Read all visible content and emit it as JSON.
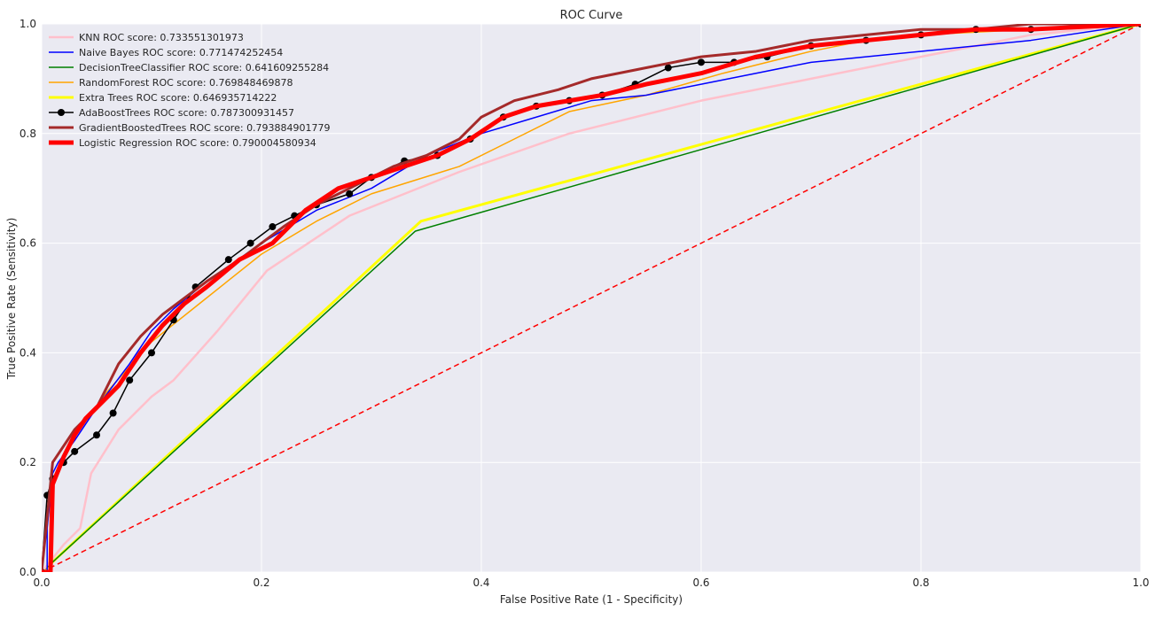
{
  "chart_data": {
    "type": "line",
    "title": "ROC Curve",
    "xlabel": "False Positive Rate (1 - Specificity)",
    "ylabel": "True Positive Rate (Sensitivity)",
    "xlim": [
      0.0,
      1.0
    ],
    "ylim": [
      0.0,
      1.0
    ],
    "xticks": [
      0.0,
      0.2,
      0.4,
      0.6,
      0.8,
      1.0
    ],
    "yticks": [
      0.0,
      0.2,
      0.4,
      0.6,
      0.8,
      1.0
    ],
    "xtick_labels": [
      "0.0",
      "0.2",
      "0.4",
      "0.6",
      "0.8",
      "1.0"
    ],
    "ytick_labels": [
      "0.0",
      "0.2",
      "0.4",
      "0.6",
      "0.8",
      "1.0"
    ],
    "grid": true,
    "legend_position": "top-left",
    "series": [
      {
        "name": "KNN ROC score: 0.733551301973",
        "color": "#ffc0cb",
        "linewidth": 2.5,
        "marker": "none",
        "dash": "solid",
        "x": [
          0.0,
          0.02,
          0.035,
          0.045,
          0.07,
          0.1,
          0.12,
          0.16,
          0.205,
          0.28,
          0.38,
          0.48,
          0.6,
          0.7,
          0.8,
          0.9,
          1.0
        ],
        "y": [
          0.0,
          0.05,
          0.08,
          0.18,
          0.26,
          0.32,
          0.35,
          0.44,
          0.55,
          0.65,
          0.73,
          0.8,
          0.86,
          0.9,
          0.94,
          0.98,
          1.0
        ]
      },
      {
        "name": "Naive Bayes ROC score: 0.771474252454",
        "color": "#0000ff",
        "linewidth": 1.5,
        "marker": "none",
        "dash": "solid",
        "x": [
          0.0,
          0.005,
          0.005,
          0.01,
          0.015,
          0.03,
          0.05,
          0.08,
          0.1,
          0.12,
          0.15,
          0.2,
          0.25,
          0.3,
          0.35,
          0.4,
          0.45,
          0.5,
          0.55,
          0.6,
          0.65,
          0.7,
          0.75,
          0.8,
          0.9,
          1.0
        ],
        "y": [
          0.0,
          0.0,
          0.08,
          0.18,
          0.2,
          0.24,
          0.3,
          0.38,
          0.44,
          0.48,
          0.53,
          0.6,
          0.66,
          0.7,
          0.76,
          0.8,
          0.83,
          0.86,
          0.87,
          0.89,
          0.91,
          0.93,
          0.94,
          0.95,
          0.97,
          1.0
        ]
      },
      {
        "name": "DecisionTreeClassifier ROC score: 0.641609255284",
        "color": "#008000",
        "linewidth": 1.5,
        "marker": "none",
        "dash": "solid",
        "x": [
          0.0,
          0.34,
          1.0
        ],
        "y": [
          0.0,
          0.622,
          1.0
        ]
      },
      {
        "name": "RandomForest ROC score: 0.769848469878",
        "color": "#ffa500",
        "linewidth": 1.5,
        "marker": "none",
        "dash": "solid",
        "x": [
          0.0,
          0.01,
          0.03,
          0.06,
          0.1,
          0.15,
          0.2,
          0.25,
          0.3,
          0.38,
          0.43,
          0.48,
          0.55,
          0.62,
          0.7,
          0.75,
          0.8,
          0.9,
          1.0
        ],
        "y": [
          0.0,
          0.17,
          0.25,
          0.33,
          0.42,
          0.5,
          0.58,
          0.64,
          0.69,
          0.74,
          0.79,
          0.84,
          0.87,
          0.91,
          0.95,
          0.97,
          0.98,
          0.99,
          1.0
        ]
      },
      {
        "name": "Extra Trees ROC score: 0.646935714222",
        "color": "#ffff00",
        "linewidth": 3,
        "marker": "none",
        "dash": "solid",
        "x": [
          0.0,
          0.345,
          1.0
        ],
        "y": [
          0.0,
          0.64,
          1.0
        ]
      },
      {
        "name": "AdaBoostTrees ROC score: 0.787300931457",
        "color": "#000000",
        "linewidth": 1.5,
        "marker": "circle",
        "dash": "solid",
        "x": [
          0.0,
          0.005,
          0.01,
          0.02,
          0.03,
          0.05,
          0.065,
          0.08,
          0.1,
          0.12,
          0.14,
          0.17,
          0.19,
          0.21,
          0.23,
          0.25,
          0.28,
          0.3,
          0.33,
          0.36,
          0.39,
          0.42,
          0.45,
          0.48,
          0.51,
          0.54,
          0.57,
          0.6,
          0.63,
          0.66,
          0.7,
          0.75,
          0.8,
          0.85,
          0.9,
          1.0
        ],
        "y": [
          0.0,
          0.14,
          0.17,
          0.2,
          0.22,
          0.25,
          0.29,
          0.35,
          0.4,
          0.46,
          0.52,
          0.57,
          0.6,
          0.63,
          0.65,
          0.67,
          0.69,
          0.72,
          0.75,
          0.76,
          0.79,
          0.83,
          0.85,
          0.86,
          0.87,
          0.89,
          0.92,
          0.93,
          0.93,
          0.94,
          0.96,
          0.97,
          0.98,
          0.99,
          0.99,
          1.0
        ]
      },
      {
        "name": "GradientBoostedTrees ROC score: 0.793884901779",
        "color": "#a52a2a",
        "linewidth": 3,
        "marker": "none",
        "dash": "solid",
        "x": [
          0.0,
          0.005,
          0.01,
          0.03,
          0.05,
          0.07,
          0.09,
          0.11,
          0.13,
          0.15,
          0.18,
          0.2,
          0.22,
          0.25,
          0.28,
          0.32,
          0.35,
          0.38,
          0.4,
          0.43,
          0.47,
          0.5,
          0.55,
          0.6,
          0.65,
          0.7,
          0.75,
          0.8,
          0.85,
          0.9,
          1.0
        ],
        "y": [
          0.0,
          0.1,
          0.2,
          0.26,
          0.3,
          0.38,
          0.43,
          0.47,
          0.5,
          0.53,
          0.57,
          0.6,
          0.63,
          0.67,
          0.7,
          0.74,
          0.76,
          0.79,
          0.83,
          0.86,
          0.88,
          0.9,
          0.92,
          0.94,
          0.95,
          0.97,
          0.98,
          0.99,
          0.99,
          1.0,
          1.0
        ]
      },
      {
        "name": "Logistic Regression ROC score: 0.790004580934",
        "color": "#ff0000",
        "linewidth": 5,
        "marker": "none",
        "dash": "solid",
        "x": [
          0.0,
          0.008,
          0.01,
          0.02,
          0.03,
          0.04,
          0.05,
          0.07,
          0.09,
          0.11,
          0.13,
          0.15,
          0.18,
          0.21,
          0.24,
          0.27,
          0.3,
          0.33,
          0.36,
          0.39,
          0.42,
          0.45,
          0.48,
          0.51,
          0.55,
          0.6,
          0.65,
          0.7,
          0.75,
          0.8,
          0.85,
          0.9,
          1.0
        ],
        "y": [
          0.0,
          0.0,
          0.16,
          0.21,
          0.25,
          0.28,
          0.3,
          0.34,
          0.4,
          0.45,
          0.49,
          0.52,
          0.57,
          0.6,
          0.66,
          0.7,
          0.72,
          0.74,
          0.76,
          0.79,
          0.83,
          0.85,
          0.86,
          0.87,
          0.89,
          0.91,
          0.94,
          0.96,
          0.97,
          0.98,
          0.99,
          0.99,
          1.0
        ]
      },
      {
        "name": "",
        "color": "#ff0000",
        "linewidth": 1.5,
        "marker": "none",
        "dash": "dashed",
        "x": [
          0.0,
          1.0
        ],
        "y": [
          0.0,
          1.0
        ]
      }
    ]
  }
}
